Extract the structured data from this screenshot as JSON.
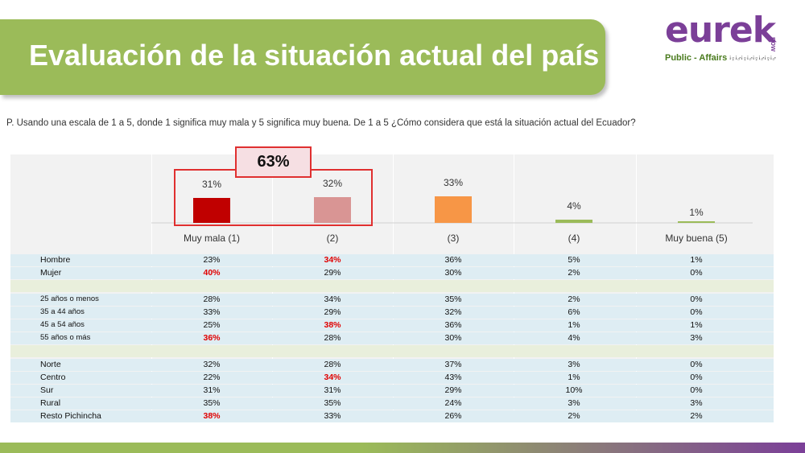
{
  "header": {
    "title": "Evaluación de la situación actual del país"
  },
  "logo": {
    "word": "eurek",
    "vertical": "now",
    "tagline": "Public - Affairs",
    "people": "ꜟ♀ꜟ♂ꜟ♀ꜟ♂ꜟ♀ꜟ♂ꜟ♀ꜟ♂"
  },
  "question": "P. Usando una escala de 1 a 5, donde 1 significa muy mala y 5 significa muy buena. De 1 a 5 ¿Cómo considera que está la situación actual del Ecuador?",
  "callout": "63%",
  "colors": {
    "green": "#9bbb59",
    "purple": "#7b3f98",
    "highlight": "#e00000",
    "bar_colors": [
      "#c00000",
      "#d99594",
      "#f79646",
      "#9bbb59",
      "#9bbb59"
    ]
  },
  "chart_data": {
    "type": "bar",
    "categories": [
      "Muy mala (1)",
      "(2)",
      "(3)",
      "(4)",
      "Muy buena (5)"
    ],
    "values": [
      31,
      32,
      33,
      4,
      1
    ],
    "value_labels": [
      "31%",
      "32%",
      "33%",
      "4%",
      "1%"
    ],
    "title": "",
    "xlabel": "",
    "ylabel": ""
  },
  "table": {
    "rows": [
      {
        "label": "Hombre",
        "values": [
          "23%",
          "34%",
          "36%",
          "5%",
          "1%"
        ],
        "highlight": [
          1
        ],
        "style": "blue",
        "small": false
      },
      {
        "label": "Mujer",
        "values": [
          "40%",
          "29%",
          "30%",
          "2%",
          "0%"
        ],
        "highlight": [
          0
        ],
        "style": "blue",
        "small": false
      },
      {
        "separator": true
      },
      {
        "label": "25 años o menos",
        "values": [
          "28%",
          "34%",
          "35%",
          "2%",
          "0%"
        ],
        "highlight": [],
        "style": "blue",
        "small": true
      },
      {
        "label": "35 a 44 años",
        "values": [
          "33%",
          "29%",
          "32%",
          "6%",
          "0%"
        ],
        "highlight": [],
        "style": "blue",
        "small": true
      },
      {
        "label": "45 a 54 años",
        "values": [
          "25%",
          "38%",
          "36%",
          "1%",
          "1%"
        ],
        "highlight": [
          1
        ],
        "style": "blue",
        "small": true
      },
      {
        "label": "55 años o más",
        "values": [
          "36%",
          "28%",
          "30%",
          "4%",
          "3%"
        ],
        "highlight": [
          0
        ],
        "style": "blue",
        "small": true
      },
      {
        "separator": true
      },
      {
        "label": "Norte",
        "values": [
          "32%",
          "28%",
          "37%",
          "3%",
          "0%"
        ],
        "highlight": [],
        "style": "blue",
        "small": false
      },
      {
        "label": "Centro",
        "values": [
          "22%",
          "34%",
          "43%",
          "1%",
          "0%"
        ],
        "highlight": [
          1
        ],
        "style": "blue",
        "small": false
      },
      {
        "label": "Sur",
        "values": [
          "31%",
          "31%",
          "29%",
          "10%",
          "0%"
        ],
        "highlight": [],
        "style": "blue",
        "small": false
      },
      {
        "label": "Rural",
        "values": [
          "35%",
          "35%",
          "24%",
          "3%",
          "3%"
        ],
        "highlight": [],
        "style": "blue",
        "small": false
      },
      {
        "label": "Resto Pichincha",
        "values": [
          "38%",
          "33%",
          "26%",
          "2%",
          "2%"
        ],
        "highlight": [
          0
        ],
        "style": "blue",
        "small": false
      }
    ]
  }
}
